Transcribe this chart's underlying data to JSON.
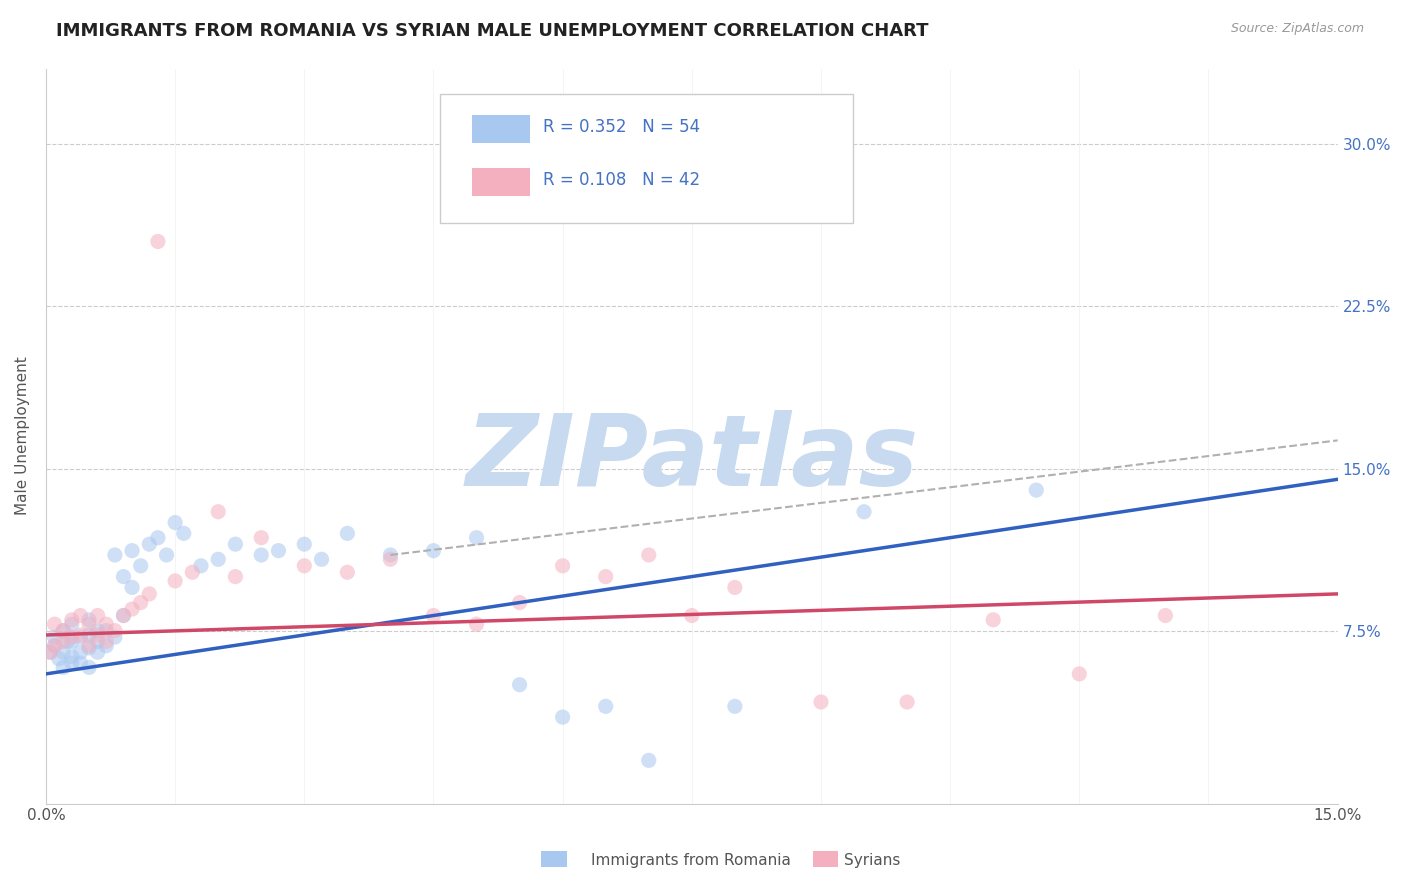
{
  "title": "IMMIGRANTS FROM ROMANIA VS SYRIAN MALE UNEMPLOYMENT CORRELATION CHART",
  "source_text": "Source: ZipAtlas.com",
  "ylabel": "Male Unemployment",
  "y_tick_labels": [
    "7.5%",
    "15.0%",
    "22.5%",
    "30.0%"
  ],
  "y_tick_values": [
    0.075,
    0.15,
    0.225,
    0.3
  ],
  "xlim": [
    0.0,
    0.15
  ],
  "ylim": [
    -0.005,
    0.335
  ],
  "legend_entries": [
    {
      "label": "R = 0.352   N = 54",
      "color": "#a8c8f0"
    },
    {
      "label": "R = 0.108   N = 42",
      "color": "#f5b0c0"
    }
  ],
  "legend_bottom_labels": [
    "Immigrants from Romania",
    "Syrians"
  ],
  "legend_bottom_colors": [
    "#a8c8f0",
    "#f5b0c0"
  ],
  "romania_scatter_x": [
    0.0005,
    0.001,
    0.001,
    0.0015,
    0.002,
    0.002,
    0.002,
    0.0025,
    0.003,
    0.003,
    0.003,
    0.003,
    0.004,
    0.004,
    0.004,
    0.005,
    0.005,
    0.005,
    0.005,
    0.006,
    0.006,
    0.006,
    0.007,
    0.007,
    0.008,
    0.008,
    0.009,
    0.009,
    0.01,
    0.01,
    0.011,
    0.012,
    0.013,
    0.014,
    0.015,
    0.016,
    0.018,
    0.02,
    0.022,
    0.025,
    0.027,
    0.03,
    0.032,
    0.035,
    0.04,
    0.045,
    0.05,
    0.055,
    0.06,
    0.065,
    0.07,
    0.08,
    0.095,
    0.115
  ],
  "romania_scatter_y": [
    0.065,
    0.068,
    0.072,
    0.062,
    0.065,
    0.058,
    0.075,
    0.07,
    0.06,
    0.063,
    0.07,
    0.078,
    0.065,
    0.072,
    0.06,
    0.067,
    0.073,
    0.08,
    0.058,
    0.065,
    0.07,
    0.075,
    0.068,
    0.075,
    0.072,
    0.11,
    0.082,
    0.1,
    0.095,
    0.112,
    0.105,
    0.115,
    0.118,
    0.11,
    0.125,
    0.12,
    0.105,
    0.108,
    0.115,
    0.11,
    0.112,
    0.115,
    0.108,
    0.12,
    0.11,
    0.112,
    0.118,
    0.05,
    0.035,
    0.04,
    0.015,
    0.04,
    0.13,
    0.14
  ],
  "syrian_scatter_x": [
    0.0005,
    0.001,
    0.001,
    0.002,
    0.002,
    0.003,
    0.003,
    0.004,
    0.004,
    0.005,
    0.005,
    0.006,
    0.006,
    0.007,
    0.007,
    0.008,
    0.009,
    0.01,
    0.011,
    0.012,
    0.013,
    0.015,
    0.017,
    0.02,
    0.022,
    0.025,
    0.03,
    0.035,
    0.04,
    0.045,
    0.05,
    0.055,
    0.06,
    0.065,
    0.07,
    0.075,
    0.08,
    0.09,
    0.1,
    0.11,
    0.12,
    0.13
  ],
  "syrian_scatter_y": [
    0.065,
    0.068,
    0.078,
    0.07,
    0.075,
    0.072,
    0.08,
    0.073,
    0.082,
    0.068,
    0.078,
    0.073,
    0.082,
    0.07,
    0.078,
    0.075,
    0.082,
    0.085,
    0.088,
    0.092,
    0.255,
    0.098,
    0.102,
    0.13,
    0.1,
    0.118,
    0.105,
    0.102,
    0.108,
    0.082,
    0.078,
    0.088,
    0.105,
    0.1,
    0.11,
    0.082,
    0.095,
    0.042,
    0.042,
    0.08,
    0.055,
    0.082
  ],
  "romania_trend_x": [
    0.0,
    0.15
  ],
  "romania_trend_y": [
    0.055,
    0.145
  ],
  "syrian_trend_x": [
    0.0,
    0.15
  ],
  "syrian_trend_y": [
    0.073,
    0.092
  ],
  "dashed_line_x": [
    0.04,
    0.15
  ],
  "dashed_line_y": [
    0.11,
    0.163
  ],
  "scatter_color_blue": "#a8c8f0",
  "scatter_color_pink": "#f5b0c0",
  "trend_color_blue": "#3060c0",
  "trend_color_pink": "#d04868",
  "dashed_color": "#b0b0b0",
  "watermark_text": "ZIPatlas",
  "watermark_color": "#c8daf0",
  "background_color": "#ffffff",
  "grid_color": "#cccccc",
  "title_fontsize": 13,
  "ylabel_fontsize": 11,
  "tick_fontsize": 11,
  "scatter_size": 120,
  "scatter_alpha": 0.55
}
